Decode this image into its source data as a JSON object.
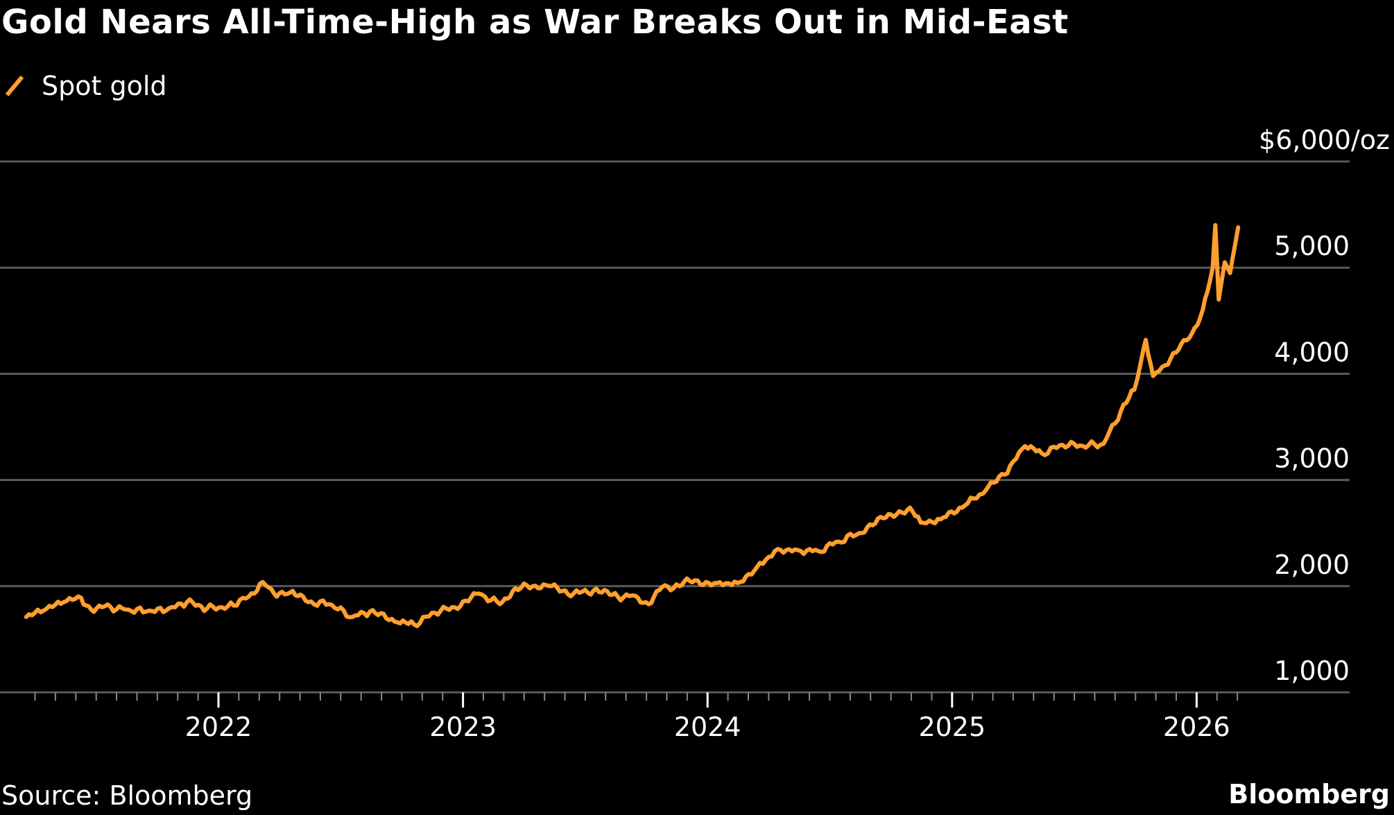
{
  "chart_data": {
    "type": "line",
    "title": "Gold Nears All-Time-High as War Breaks Out in Mid-East",
    "source": "Source: Bloomberg",
    "brand": "Bloomberg",
    "xlabel": "",
    "ylabel": "",
    "y_unit_label": "$6,000/oz",
    "ylim": [
      1000,
      6000
    ],
    "yticks": [
      1000,
      2000,
      3000,
      4000,
      5000,
      6000
    ],
    "ytick_labels": [
      "1,000",
      "2,000",
      "3,000",
      "4,000",
      "5,000",
      "$6,000/oz"
    ],
    "xticks": [
      "2022",
      "2023",
      "2024",
      "2025",
      "2026"
    ],
    "xlim": [
      "2021-03-01",
      "2026-06-01"
    ],
    "grid": true,
    "legend": "top-left",
    "colors": {
      "series": "#ff9f2e",
      "grid": "#5a5a5a",
      "background": "#000000"
    },
    "series": [
      {
        "name": "Spot gold",
        "x": [
          "2021-03-20",
          "2021-04-15",
          "2021-05-15",
          "2021-06-10",
          "2021-06-25",
          "2021-07-15",
          "2021-08-15",
          "2021-09-15",
          "2021-10-15",
          "2021-11-15",
          "2021-12-15",
          "2022-01-15",
          "2022-02-15",
          "2022-03-08",
          "2022-03-25",
          "2022-04-18",
          "2022-05-15",
          "2022-06-15",
          "2022-07-20",
          "2022-08-15",
          "2022-09-25",
          "2022-10-20",
          "2022-11-20",
          "2022-12-20",
          "2023-01-25",
          "2023-02-25",
          "2023-03-20",
          "2023-04-15",
          "2023-05-05",
          "2023-06-15",
          "2023-07-15",
          "2023-08-20",
          "2023-09-15",
          "2023-10-05",
          "2023-10-25",
          "2023-11-20",
          "2023-12-05",
          "2024-01-15",
          "2024-02-15",
          "2024-03-15",
          "2024-04-15",
          "2024-05-15",
          "2024-06-15",
          "2024-07-15",
          "2024-08-15",
          "2024-09-20",
          "2024-10-30",
          "2024-11-15",
          "2024-12-15",
          "2025-01-20",
          "2025-02-20",
          "2025-03-20",
          "2025-04-20",
          "2025-05-15",
          "2025-06-15",
          "2025-07-15",
          "2025-08-15",
          "2025-09-10",
          "2025-09-30",
          "2025-10-17",
          "2025-10-28",
          "2025-11-15",
          "2025-12-01",
          "2025-12-25",
          "2026-01-10",
          "2026-01-25",
          "2026-01-29",
          "2026-02-03",
          "2026-02-12",
          "2026-02-20",
          "2026-03-04"
        ],
        "y": [
          1710,
          1770,
          1850,
          1890,
          1780,
          1810,
          1780,
          1760,
          1770,
          1850,
          1790,
          1810,
          1900,
          2040,
          1930,
          1940,
          1850,
          1830,
          1710,
          1760,
          1660,
          1640,
          1750,
          1800,
          1930,
          1830,
          1980,
          2000,
          2010,
          1930,
          1960,
          1900,
          1910,
          1830,
          1990,
          2000,
          2050,
          2030,
          2030,
          2180,
          2350,
          2340,
          2330,
          2420,
          2500,
          2640,
          2740,
          2600,
          2630,
          2760,
          2900,
          3050,
          3320,
          3250,
          3330,
          3320,
          3340,
          3650,
          3850,
          4320,
          3980,
          4080,
          4200,
          4380,
          4600,
          5000,
          5400,
          4700,
          5050,
          4950,
          5380
        ]
      }
    ]
  }
}
